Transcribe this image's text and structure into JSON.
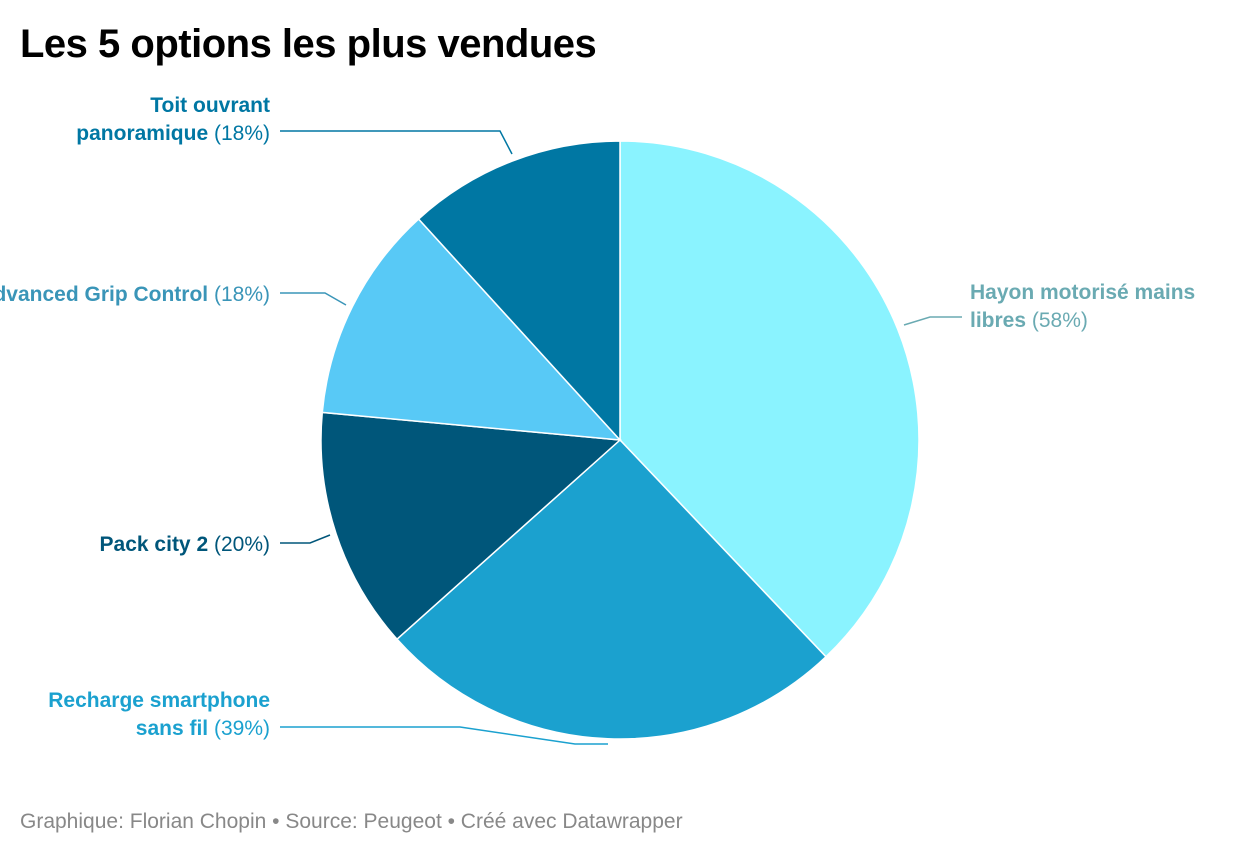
{
  "title": "Les 5 options les plus vendues",
  "footer": {
    "credit": "Graphique: Florian Chopin • Source: Peugeot • Créé avec Datawrapper"
  },
  "chart_data": {
    "type": "pie",
    "slices": [
      {
        "label": "Hayon motorisé mains libres",
        "display": "58%",
        "value": 58,
        "color": "#8af3ff",
        "label_color": "#6aaab2",
        "label_lines": [
          "Hayon motorisé mains",
          "libres"
        ]
      },
      {
        "label": "Recharge smartphone sans fil",
        "display": "39%",
        "value": 39,
        "color": "#1ba1cf",
        "label_color": "#1ba1cf",
        "label_lines": [
          "Recharge smartphone",
          "sans fil"
        ]
      },
      {
        "label": "Pack city 2",
        "display": "20%",
        "value": 20,
        "color": "#00567a",
        "label_color": "#00567a",
        "label_lines": [
          "Pack city 2"
        ]
      },
      {
        "label": "Advanced Grip Control",
        "display": "18%",
        "value": 18,
        "color": "#58c9f6",
        "label_color": "#3a95b8",
        "label_lines": [
          "Advanced Grip Control"
        ]
      },
      {
        "label": "Toit ouvrant panoramique",
        "display": "18%",
        "value": 18,
        "color": "#0077a3",
        "label_color": "#0077a3",
        "label_lines": [
          "Toit ouvrant",
          "panoramique"
        ]
      }
    ]
  }
}
